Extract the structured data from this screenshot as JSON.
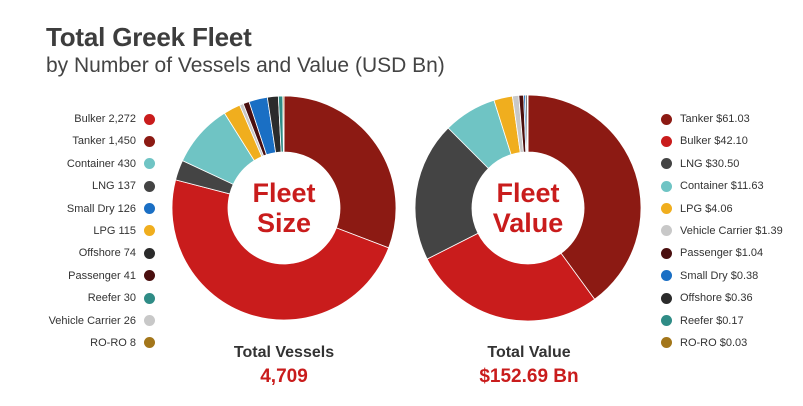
{
  "title": "Total Greek Fleet",
  "subtitle": "by Number of Vessels and Value (USD Bn)",
  "chart_data": [
    {
      "type": "pie",
      "center_label": [
        "Fleet",
        "Size"
      ],
      "total_label": "Total Vessels",
      "total_value": "4,709",
      "slices": [
        {
          "name": "Tanker",
          "value": 1450,
          "label": "Tanker 1,450",
          "color": "#8c1a13"
        },
        {
          "name": "Bulker",
          "value": 2272,
          "label": "Bulker 2,272",
          "color": "#c91c1c"
        },
        {
          "name": "LNG",
          "value": 137,
          "label": "LNG 137",
          "color": "#444444"
        },
        {
          "name": "Container",
          "value": 430,
          "label": "Container 430",
          "color": "#6fc4c4"
        },
        {
          "name": "LPG",
          "value": 115,
          "label": "LPG 115",
          "color": "#f0ae1e"
        },
        {
          "name": "Vehicle Carrier",
          "value": 26,
          "label": "Vehicle Carrier 26",
          "color": "#c8c8c8"
        },
        {
          "name": "Passenger",
          "value": 41,
          "label": "Passenger 41",
          "color": "#4a0f0f"
        },
        {
          "name": "Small Dry",
          "value": 126,
          "label": "Small Dry 126",
          "color": "#1a6fc4"
        },
        {
          "name": "Offshore",
          "value": 74,
          "label": "Offshore 74",
          "color": "#2b2b2b"
        },
        {
          "name": "Reefer",
          "value": 30,
          "label": "Reefer 30",
          "color": "#2f8c86"
        },
        {
          "name": "RO-RO",
          "value": 8,
          "label": "RO-RO 8",
          "color": "#a3761a"
        }
      ],
      "legend_order": [
        "Bulker",
        "Tanker",
        "Container",
        "LNG",
        "Small Dry",
        "LPG",
        "Offshore",
        "Passenger",
        "Reefer",
        "Vehicle Carrier",
        "RO-RO"
      ],
      "legend_position": "left"
    },
    {
      "type": "pie",
      "center_label": [
        "Fleet",
        "Value"
      ],
      "total_label": "Total Value",
      "total_value": "$152.69 Bn",
      "slices": [
        {
          "name": "Tanker",
          "value": 61.03,
          "label": "Tanker $61.03",
          "color": "#8c1a13"
        },
        {
          "name": "Bulker",
          "value": 42.1,
          "label": "Bulker $42.10",
          "color": "#c91c1c"
        },
        {
          "name": "LNG",
          "value": 30.5,
          "label": "LNG $30.50",
          "color": "#444444"
        },
        {
          "name": "Container",
          "value": 11.63,
          "label": "Container $11.63",
          "color": "#6fc4c4"
        },
        {
          "name": "LPG",
          "value": 4.06,
          "label": "LPG $4.06",
          "color": "#f0ae1e"
        },
        {
          "name": "Vehicle Carrier",
          "value": 1.39,
          "label": "Vehicle Carrier $1.39",
          "color": "#c8c8c8"
        },
        {
          "name": "Passenger",
          "value": 1.04,
          "label": "Passenger $1.04",
          "color": "#4a0f0f"
        },
        {
          "name": "Small Dry",
          "value": 0.38,
          "label": "Small Dry $0.38",
          "color": "#1a6fc4"
        },
        {
          "name": "Offshore",
          "value": 0.36,
          "label": "Offshore $0.36",
          "color": "#2b2b2b"
        },
        {
          "name": "Reefer",
          "value": 0.17,
          "label": "Reefer $0.17",
          "color": "#2f8c86"
        },
        {
          "name": "RO-RO",
          "value": 0.03,
          "label": "RO-RO $0.03",
          "color": "#a3761a"
        }
      ],
      "legend_order": [
        "Tanker",
        "Bulker",
        "LNG",
        "Container",
        "LPG",
        "Vehicle Carrier",
        "Passenger",
        "Small Dry",
        "Offshore",
        "Reefer",
        "RO-RO"
      ],
      "legend_position": "right"
    }
  ]
}
